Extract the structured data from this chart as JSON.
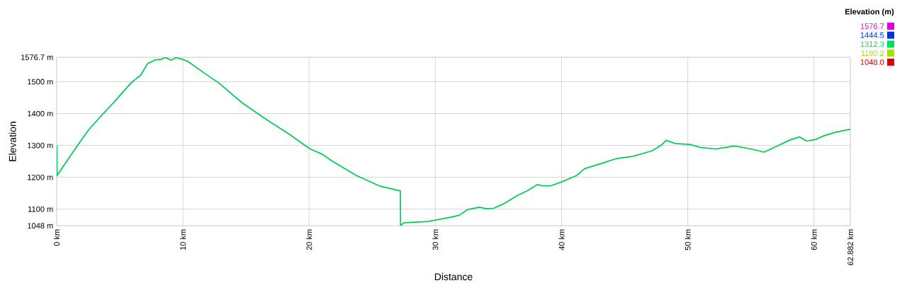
{
  "chart_data": {
    "type": "line",
    "xlabel": "Distance",
    "ylabel": "Elevation",
    "clabel": "Elevation (m)",
    "xlim": [
      0,
      62.882
    ],
    "ylim": [
      1048,
      1576.7
    ],
    "xticks": [
      {
        "value": 0,
        "label": "0 km"
      },
      {
        "value": 10,
        "label": "10 km"
      },
      {
        "value": 20,
        "label": "20 km"
      },
      {
        "value": 30,
        "label": "30 km"
      },
      {
        "value": 40,
        "label": "40 km"
      },
      {
        "value": 50,
        "label": "50 km"
      },
      {
        "value": 60,
        "label": "60 km"
      },
      {
        "value": 62.882,
        "label": "62.882 km"
      }
    ],
    "yticks": [
      {
        "value": 1048,
        "label": "1048 m"
      },
      {
        "value": 1100,
        "label": "1100 m"
      },
      {
        "value": 1200,
        "label": "1200 m"
      },
      {
        "value": 1300,
        "label": "1300 m"
      },
      {
        "value": 1400,
        "label": "1400 m"
      },
      {
        "value": 1500,
        "label": "1500 m"
      },
      {
        "value": 1576.7,
        "label": "1576.7 m"
      }
    ],
    "clim": [
      1048,
      1576.7
    ],
    "cticks": [
      {
        "value": 1048,
        "label": "1048.0"
      },
      {
        "value": 1180.2,
        "label": "1180.2"
      },
      {
        "value": 1312.3,
        "label": "1312.3"
      },
      {
        "value": 1444.5,
        "label": "1444.5"
      },
      {
        "value": 1576.7,
        "label": "1576.7"
      }
    ],
    "color": "#00cc55",
    "grid": true,
    "x": [
      0,
      0.02,
      1.59,
      2.53,
      3.46,
      4.59,
      5.9,
      6.64,
      7.2,
      7.77,
      8.33,
      8.61,
      9.08,
      9.45,
      9.92,
      10.39,
      11.7,
      12.82,
      14.69,
      16.56,
      18.43,
      20.03,
      21.05,
      21.9,
      23.77,
      25.64,
      27.23,
      27.25,
      27.51,
      29.38,
      31.26,
      31.91,
      32.57,
      33.5,
      34.06,
      34.63,
      35.37,
      36.5,
      37.24,
      38.08,
      38.55,
      39.11,
      40.05,
      41.17,
      41.83,
      43.05,
      44.36,
      45.67,
      47.16,
      47.91,
      48.29,
      49.03,
      50.16,
      51.09,
      52.22,
      53.72,
      55.02,
      56.05,
      57.08,
      58.02,
      58.86,
      59.42,
      60.08,
      60.83,
      61.77,
      62.882
    ],
    "values": [
      1300,
      1205,
      1297,
      1349,
      1390,
      1438,
      1497,
      1520,
      1557,
      1568,
      1571,
      1576,
      1568,
      1576,
      1571,
      1564,
      1527,
      1497,
      1434,
      1383,
      1335,
      1290,
      1272,
      1249,
      1205,
      1172,
      1157,
      1048,
      1057,
      1061,
      1075,
      1081,
      1099,
      1106,
      1101,
      1103,
      1116,
      1143,
      1157,
      1177,
      1173,
      1173,
      1186,
      1205,
      1227,
      1242,
      1259,
      1266,
      1283,
      1301,
      1316,
      1306,
      1303,
      1293,
      1289,
      1298,
      1289,
      1279,
      1298,
      1316,
      1327,
      1314,
      1318,
      1331,
      1342,
      1351
    ]
  }
}
